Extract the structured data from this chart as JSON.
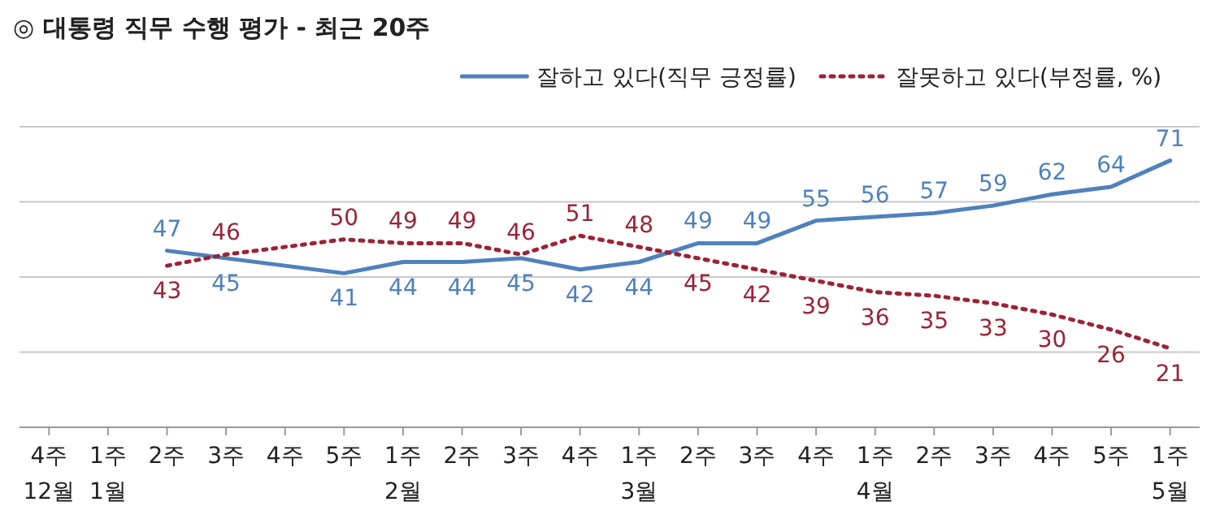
{
  "chart_data": {
    "type": "line",
    "title": "◎  대통령 직무 수행 평가 - 최근 20주",
    "categories": [
      "4주\n12월",
      "1주\n1월",
      "2주",
      "3주",
      "4주",
      "5주",
      "1주\n2월",
      "2주",
      "3주",
      "4주",
      "1주\n3월",
      "2주",
      "3주",
      "4주",
      "1주\n4월",
      "2주",
      "3주",
      "4주",
      "5주",
      "1주\n5월"
    ],
    "series": [
      {
        "name": "잘하고 있다(직무 긍정률)",
        "color": "#4f81bd",
        "line_style": "solid",
        "values": [
          null,
          null,
          47,
          45,
          null,
          41,
          44,
          44,
          45,
          42,
          44,
          49,
          49,
          55,
          56,
          57,
          59,
          62,
          64,
          71
        ]
      },
      {
        "name": "잘못하고 있다(부정률, %)",
        "color": "#9b2335",
        "line_style": "dotted",
        "values": [
          null,
          null,
          43,
          46,
          null,
          50,
          49,
          49,
          46,
          51,
          48,
          45,
          42,
          39,
          36,
          35,
          33,
          30,
          26,
          21
        ]
      }
    ],
    "ylim": [
      0,
      80
    ],
    "yticks": [
      0,
      20,
      40,
      60,
      80
    ],
    "tick_labels": "x",
    "grid": "y",
    "legend": "top right",
    "marker": "none",
    "data_labels": true
  }
}
